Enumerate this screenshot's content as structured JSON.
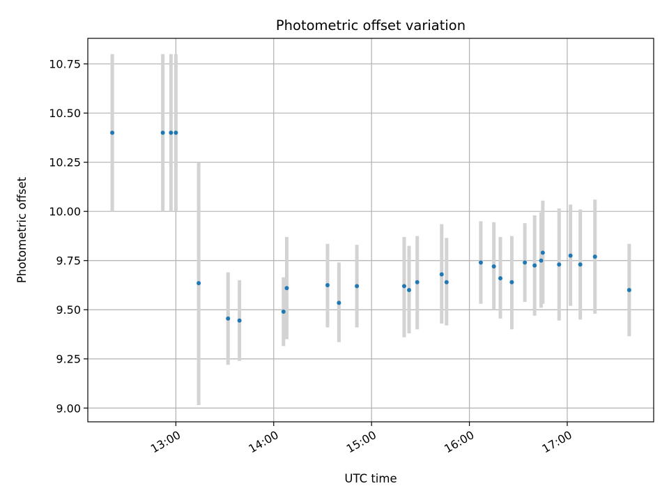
{
  "chart_data": {
    "type": "scatter",
    "title": "Photometric offset variation",
    "xlabel": "UTC time",
    "ylabel": "Photometric offset",
    "x_unit": "UTC time (HH:MM)",
    "xlim": [
      "12:06",
      "17:53"
    ],
    "ylim": [
      8.93,
      10.88
    ],
    "x_ticks": [
      "13:00",
      "14:00",
      "15:00",
      "16:00",
      "17:00"
    ],
    "y_ticks": [
      "9.00",
      "9.25",
      "9.50",
      "9.75",
      "10.00",
      "10.25",
      "10.50",
      "10.75"
    ],
    "grid": true,
    "point_color": "#1f77b4",
    "errorbar_color": "#d3d3d3",
    "series": [
      {
        "points": [
          {
            "x": "12:21",
            "y": 10.4,
            "ylow": 10.0,
            "yhigh": 10.8
          },
          {
            "x": "12:52",
            "y": 10.4,
            "ylow": 10.0,
            "yhigh": 10.8
          },
          {
            "x": "12:57",
            "y": 10.4,
            "ylow": 10.0,
            "yhigh": 10.8
          },
          {
            "x": "13:00",
            "y": 10.4,
            "ylow": 10.0,
            "yhigh": 10.8
          },
          {
            "x": "13:14",
            "y": 9.635,
            "ylow": 9.015,
            "yhigh": 10.25
          },
          {
            "x": "13:32",
            "y": 9.455,
            "ylow": 9.22,
            "yhigh": 9.69
          },
          {
            "x": "13:39",
            "y": 9.445,
            "ylow": 9.24,
            "yhigh": 9.65
          },
          {
            "x": "14:06",
            "y": 9.49,
            "ylow": 9.315,
            "yhigh": 9.665
          },
          {
            "x": "14:08",
            "y": 9.61,
            "ylow": 9.35,
            "yhigh": 9.87
          },
          {
            "x": "14:33",
            "y": 9.625,
            "ylow": 9.41,
            "yhigh": 9.835
          },
          {
            "x": "14:40",
            "y": 9.535,
            "ylow": 9.335,
            "yhigh": 9.74
          },
          {
            "x": "14:51",
            "y": 9.62,
            "ylow": 9.41,
            "yhigh": 9.83
          },
          {
            "x": "15:20",
            "y": 9.62,
            "ylow": 9.36,
            "yhigh": 9.87
          },
          {
            "x": "15:23",
            "y": 9.6,
            "ylow": 9.38,
            "yhigh": 9.825
          },
          {
            "x": "15:28",
            "y": 9.64,
            "ylow": 9.4,
            "yhigh": 9.875
          },
          {
            "x": "15:43",
            "y": 9.68,
            "ylow": 9.43,
            "yhigh": 9.935
          },
          {
            "x": "15:46",
            "y": 9.64,
            "ylow": 9.42,
            "yhigh": 9.865
          },
          {
            "x": "16:07",
            "y": 9.74,
            "ylow": 9.53,
            "yhigh": 9.95
          },
          {
            "x": "16:15",
            "y": 9.72,
            "ylow": 9.5,
            "yhigh": 9.945
          },
          {
            "x": "16:19",
            "y": 9.66,
            "ylow": 9.455,
            "yhigh": 9.87
          },
          {
            "x": "16:26",
            "y": 9.64,
            "ylow": 9.4,
            "yhigh": 9.875
          },
          {
            "x": "16:34",
            "y": 9.74,
            "ylow": 9.54,
            "yhigh": 9.94
          },
          {
            "x": "16:40",
            "y": 9.725,
            "ylow": 9.47,
            "yhigh": 9.98
          },
          {
            "x": "16:44",
            "y": 9.75,
            "ylow": 9.51,
            "yhigh": 9.995
          },
          {
            "x": "16:45",
            "y": 9.79,
            "ylow": 9.53,
            "yhigh": 10.055
          },
          {
            "x": "16:55",
            "y": 9.73,
            "ylow": 9.445,
            "yhigh": 10.015
          },
          {
            "x": "17:02",
            "y": 9.775,
            "ylow": 9.52,
            "yhigh": 10.035
          },
          {
            "x": "17:08",
            "y": 9.73,
            "ylow": 9.45,
            "yhigh": 10.01
          },
          {
            "x": "17:17",
            "y": 9.77,
            "ylow": 9.48,
            "yhigh": 10.06
          },
          {
            "x": "17:38",
            "y": 9.6,
            "ylow": 9.365,
            "yhigh": 9.835
          }
        ]
      }
    ]
  }
}
